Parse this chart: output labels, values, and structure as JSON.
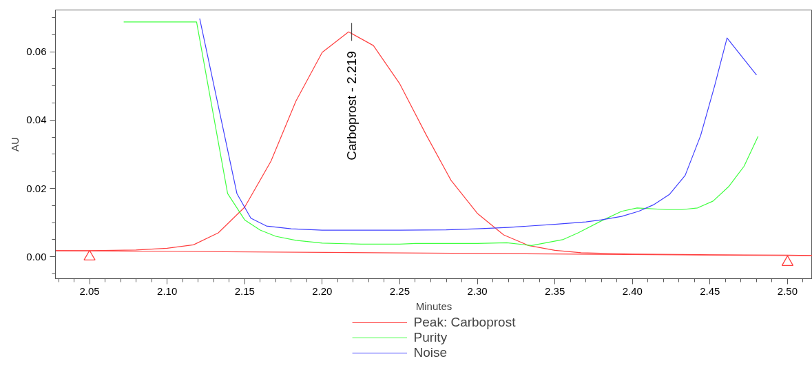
{
  "chart_data": {
    "type": "line",
    "xlabel": "Minutes",
    "ylabel": "AU",
    "xlim": [
      2.028,
      2.516
    ],
    "ylim": [
      -0.0064,
      0.0722
    ],
    "xticks": [
      {
        "value": 2.03,
        "label": null
      },
      {
        "value": 2.04,
        "label": null
      },
      {
        "value": 2.05,
        "label": "2.05"
      },
      {
        "value": 2.06,
        "label": null
      },
      {
        "value": 2.07,
        "label": null
      },
      {
        "value": 2.08,
        "label": null
      },
      {
        "value": 2.09,
        "label": null
      },
      {
        "value": 2.1,
        "label": "2.10"
      },
      {
        "value": 2.11,
        "label": null
      },
      {
        "value": 2.12,
        "label": null
      },
      {
        "value": 2.13,
        "label": null
      },
      {
        "value": 2.14,
        "label": null
      },
      {
        "value": 2.15,
        "label": "2.15"
      },
      {
        "value": 2.16,
        "label": null
      },
      {
        "value": 2.17,
        "label": null
      },
      {
        "value": 2.18,
        "label": null
      },
      {
        "value": 2.19,
        "label": null
      },
      {
        "value": 2.2,
        "label": "2.20"
      },
      {
        "value": 2.21,
        "label": null
      },
      {
        "value": 2.22,
        "label": null
      },
      {
        "value": 2.23,
        "label": null
      },
      {
        "value": 2.24,
        "label": null
      },
      {
        "value": 2.25,
        "label": "2.25"
      },
      {
        "value": 2.26,
        "label": null
      },
      {
        "value": 2.27,
        "label": null
      },
      {
        "value": 2.28,
        "label": null
      },
      {
        "value": 2.29,
        "label": null
      },
      {
        "value": 2.3,
        "label": "2.30"
      },
      {
        "value": 2.31,
        "label": null
      },
      {
        "value": 2.32,
        "label": null
      },
      {
        "value": 2.33,
        "label": null
      },
      {
        "value": 2.34,
        "label": null
      },
      {
        "value": 2.35,
        "label": "2.35"
      },
      {
        "value": 2.36,
        "label": null
      },
      {
        "value": 2.37,
        "label": null
      },
      {
        "value": 2.38,
        "label": null
      },
      {
        "value": 2.39,
        "label": null
      },
      {
        "value": 2.4,
        "label": "2.40"
      },
      {
        "value": 2.41,
        "label": null
      },
      {
        "value": 2.42,
        "label": null
      },
      {
        "value": 2.43,
        "label": null
      },
      {
        "value": 2.44,
        "label": null
      },
      {
        "value": 2.45,
        "label": "2.45"
      },
      {
        "value": 2.46,
        "label": null
      },
      {
        "value": 2.47,
        "label": null
      },
      {
        "value": 2.48,
        "label": null
      },
      {
        "value": 2.49,
        "label": null
      },
      {
        "value": 2.5,
        "label": "2.50"
      },
      {
        "value": 2.51,
        "label": null
      }
    ],
    "yticks": [
      {
        "value": -0.005,
        "label": null
      },
      {
        "value": 0,
        "label": "0.00"
      },
      {
        "value": 0.005,
        "label": null
      },
      {
        "value": 0.01,
        "label": null
      },
      {
        "value": 0.015,
        "label": null
      },
      {
        "value": 0.02,
        "label": "0.02"
      },
      {
        "value": 0.025,
        "label": null
      },
      {
        "value": 0.03,
        "label": null
      },
      {
        "value": 0.035,
        "label": null
      },
      {
        "value": 0.04,
        "label": "0.04"
      },
      {
        "value": 0.045,
        "label": null
      },
      {
        "value": 0.05,
        "label": null
      },
      {
        "value": 0.055,
        "label": null
      },
      {
        "value": 0.06,
        "label": "0.06"
      },
      {
        "value": 0.065,
        "label": null
      },
      {
        "value": 0.07,
        "label": null
      }
    ],
    "grid": false,
    "legend": "bottom",
    "annotations": [
      {
        "text": "Carboprost - 2.219",
        "x": 2.219,
        "y": 0.0658
      }
    ],
    "series": [
      {
        "name": "Peak: Carboprost",
        "color": "#ff4040",
        "x": [
          2.028,
          2.05,
          2.08,
          2.1,
          2.117,
          2.133,
          2.15,
          2.167,
          2.183,
          2.2,
          2.217,
          2.233,
          2.25,
          2.267,
          2.283,
          2.3,
          2.317,
          2.333,
          2.35,
          2.367,
          2.4,
          2.45,
          2.5,
          2.516
        ],
        "values": [
          0.0018,
          0.0018,
          0.002,
          0.0025,
          0.0035,
          0.007,
          0.0145,
          0.028,
          0.0455,
          0.0598,
          0.0658,
          0.0618,
          0.0506,
          0.0357,
          0.0224,
          0.0127,
          0.0064,
          0.0033,
          0.0019,
          0.0012,
          0.0008,
          0.0006,
          0.0005,
          0.0004
        ]
      },
      {
        "color": "#ff4040",
        "x": [
          2.028,
          2.516
        ],
        "values": [
          0.0018,
          0.0003
        ]
      },
      {
        "name": "Purity",
        "color": "#40ff40",
        "x": [
          2.072,
          2.119,
          2.139,
          2.15,
          2.16,
          2.17,
          2.183,
          2.2,
          2.225,
          2.25,
          2.26,
          2.3,
          2.319,
          2.335,
          2.355,
          2.365,
          2.38,
          2.393,
          2.403,
          2.422,
          2.432,
          2.442,
          2.452,
          2.462,
          2.472,
          2.481
        ],
        "values": [
          0.0687,
          0.0687,
          0.0185,
          0.0108,
          0.0078,
          0.006,
          0.0048,
          0.004,
          0.0037,
          0.0037,
          0.0039,
          0.0039,
          0.0041,
          0.0033,
          0.005,
          0.007,
          0.0105,
          0.0133,
          0.0143,
          0.0138,
          0.0138,
          0.0143,
          0.0163,
          0.0205,
          0.0265,
          0.0352
        ]
      },
      {
        "name": "Noise",
        "color": "#4040ff",
        "x": [
          2.121,
          2.145,
          2.154,
          2.164,
          2.18,
          2.2,
          2.25,
          2.28,
          2.3,
          2.32,
          2.35,
          2.37,
          2.38,
          2.393,
          2.404,
          2.414,
          2.424,
          2.434,
          2.444,
          2.453,
          2.461,
          2.48
        ],
        "values": [
          0.0697,
          0.0185,
          0.0113,
          0.009,
          0.0082,
          0.0078,
          0.0078,
          0.0079,
          0.0082,
          0.0086,
          0.0095,
          0.0102,
          0.0108,
          0.0118,
          0.0133,
          0.0153,
          0.0183,
          0.0238,
          0.0355,
          0.05,
          0.064,
          0.0532
        ]
      },
      {
        "type": "scatter",
        "marker": "triangle",
        "color": "#ff4040",
        "x": [
          2.05,
          2.5
        ],
        "values": [
          0.0,
          -0.0016
        ]
      }
    ]
  }
}
